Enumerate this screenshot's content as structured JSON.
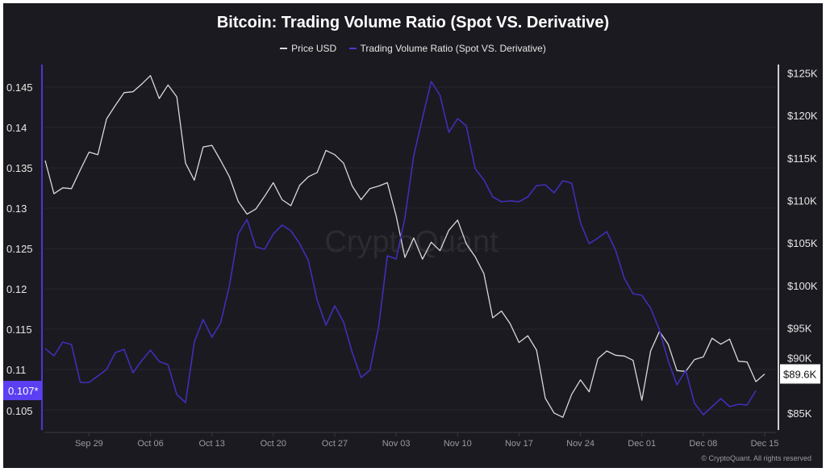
{
  "chart_data": {
    "type": "line",
    "title": "Bitcoin: Trading Volume Ratio (Spot VS. Derivative)",
    "legend_position": "top",
    "grid": true,
    "x": [
      "Sep 24",
      "Sep 25",
      "Sep 26",
      "Sep 27",
      "Sep 28",
      "Sep 29",
      "Sep 30",
      "Oct 01",
      "Oct 02",
      "Oct 03",
      "Oct 04",
      "Oct 05",
      "Oct 06",
      "Oct 07",
      "Oct 08",
      "Oct 09",
      "Oct 10",
      "Oct 11",
      "Oct 12",
      "Oct 13",
      "Oct 14",
      "Oct 15",
      "Oct 16",
      "Oct 17",
      "Oct 18",
      "Oct 19",
      "Oct 20",
      "Oct 21",
      "Oct 22",
      "Oct 23",
      "Oct 24",
      "Oct 25",
      "Oct 26",
      "Oct 27",
      "Oct 28",
      "Oct 29",
      "Oct 30",
      "Oct 31",
      "Nov 01",
      "Nov 02",
      "Nov 03",
      "Nov 04",
      "Nov 05",
      "Nov 06",
      "Nov 07",
      "Nov 08",
      "Nov 09",
      "Nov 10",
      "Nov 11",
      "Nov 12",
      "Nov 13",
      "Nov 14",
      "Nov 15",
      "Nov 16",
      "Nov 17",
      "Nov 18",
      "Nov 19",
      "Nov 20",
      "Nov 21",
      "Nov 22",
      "Nov 23",
      "Nov 24",
      "Nov 25",
      "Nov 26",
      "Nov 27",
      "Nov 28",
      "Nov 29",
      "Nov 30",
      "Dec 01",
      "Dec 02",
      "Dec 03",
      "Dec 04",
      "Dec 05",
      "Dec 06",
      "Dec 07",
      "Dec 08",
      "Dec 09",
      "Dec 10",
      "Dec 11",
      "Dec 12",
      "Dec 13",
      "Dec 14",
      "Dec 15"
    ],
    "x_ticks": [
      "Sep 29",
      "Oct 06",
      "Oct 13",
      "Oct 20",
      "Oct 27",
      "Nov 03",
      "Nov 10",
      "Nov 17",
      "Nov 24",
      "Dec 01",
      "Dec 08",
      "Dec 15"
    ],
    "y_left": {
      "ticks": [
        "0.145",
        "0.14",
        "0.135",
        "0.13",
        "0.125",
        "0.12",
        "0.115",
        "0.11",
        "0.105"
      ],
      "range": [
        0.1025,
        0.1478
      ],
      "current_label": "0.107*"
    },
    "y_right": {
      "ticks": [
        "$125K",
        "$120K",
        "$115K",
        "$110K",
        "$105K",
        "$100K",
        "$95K",
        "$90K",
        "$85K"
      ],
      "range": [
        83.0,
        126.0
      ],
      "unit": "K USD",
      "current_label": "$89.6K"
    },
    "series": [
      {
        "name": "Price USD",
        "axis": "right",
        "color": "#d9d9d9",
        "values": [
          114.7,
          110.8,
          111.5,
          111.4,
          113.6,
          115.7,
          115.4,
          119.6,
          121.2,
          122.7,
          122.8,
          123.7,
          124.7,
          122.0,
          123.6,
          122.2,
          114.4,
          112.4,
          116.3,
          116.5,
          114.7,
          112.8,
          109.9,
          108.4,
          109.0,
          110.5,
          112.1,
          110.1,
          109.4,
          111.8,
          112.8,
          113.3,
          115.9,
          115.4,
          114.4,
          111.7,
          110.1,
          111.4,
          111.7,
          112.1,
          108.2,
          103.3,
          105.6,
          103.1,
          105.1,
          104.1,
          106.5,
          107.7,
          104.9,
          103.4,
          101.4,
          96.2,
          97.0,
          95.5,
          93.3,
          94.1,
          92.4,
          86.75,
          85.0,
          84.5,
          87.2,
          88.9,
          87.5,
          91.4,
          92.3,
          91.8,
          91.7,
          91.2,
          86.5,
          92.3,
          94.6,
          93.1,
          90.0,
          89.9,
          91.3,
          91.6,
          93.8,
          93.1,
          93.7,
          91.1,
          91.0,
          88.7,
          89.6
        ]
      },
      {
        "name": "Trading Volume Ratio (Spot VS. Derivative)",
        "axis": "left",
        "color": "#3f2fb8",
        "values": [
          0.1126,
          0.1117,
          0.1134,
          0.1131,
          0.1084,
          0.1084,
          0.1092,
          0.11,
          0.1121,
          0.1125,
          0.1096,
          0.1111,
          0.1124,
          0.111,
          0.1106,
          0.1069,
          0.1059,
          0.1134,
          0.1162,
          0.114,
          0.1158,
          0.1204,
          0.1268,
          0.1286,
          0.1252,
          0.1249,
          0.1268,
          0.1279,
          0.1272,
          0.1256,
          0.1235,
          0.1186,
          0.1155,
          0.1179,
          0.1159,
          0.1121,
          0.109,
          0.1099,
          0.1153,
          0.1241,
          0.1237,
          0.1288,
          0.1365,
          0.1412,
          0.1457,
          0.144,
          0.1394,
          0.1411,
          0.1402,
          0.1349,
          0.1335,
          0.1314,
          0.1308,
          0.1309,
          0.1308,
          0.1314,
          0.1328,
          0.1329,
          0.1319,
          0.1334,
          0.1331,
          0.1282,
          0.1256,
          0.1263,
          0.1271,
          0.1248,
          0.1213,
          0.1194,
          0.1192,
          0.1176,
          0.1149,
          0.1111,
          0.1081,
          0.1099,
          0.1058,
          0.1044,
          0.1054,
          0.1064,
          0.1054,
          0.1057,
          0.1056,
          0.1074,
          null
        ]
      }
    ],
    "accent_label_color": "#5b3ff2",
    "watermark": "CryptoQuant",
    "footer": "© CryptoQuant. All rights reserved"
  }
}
